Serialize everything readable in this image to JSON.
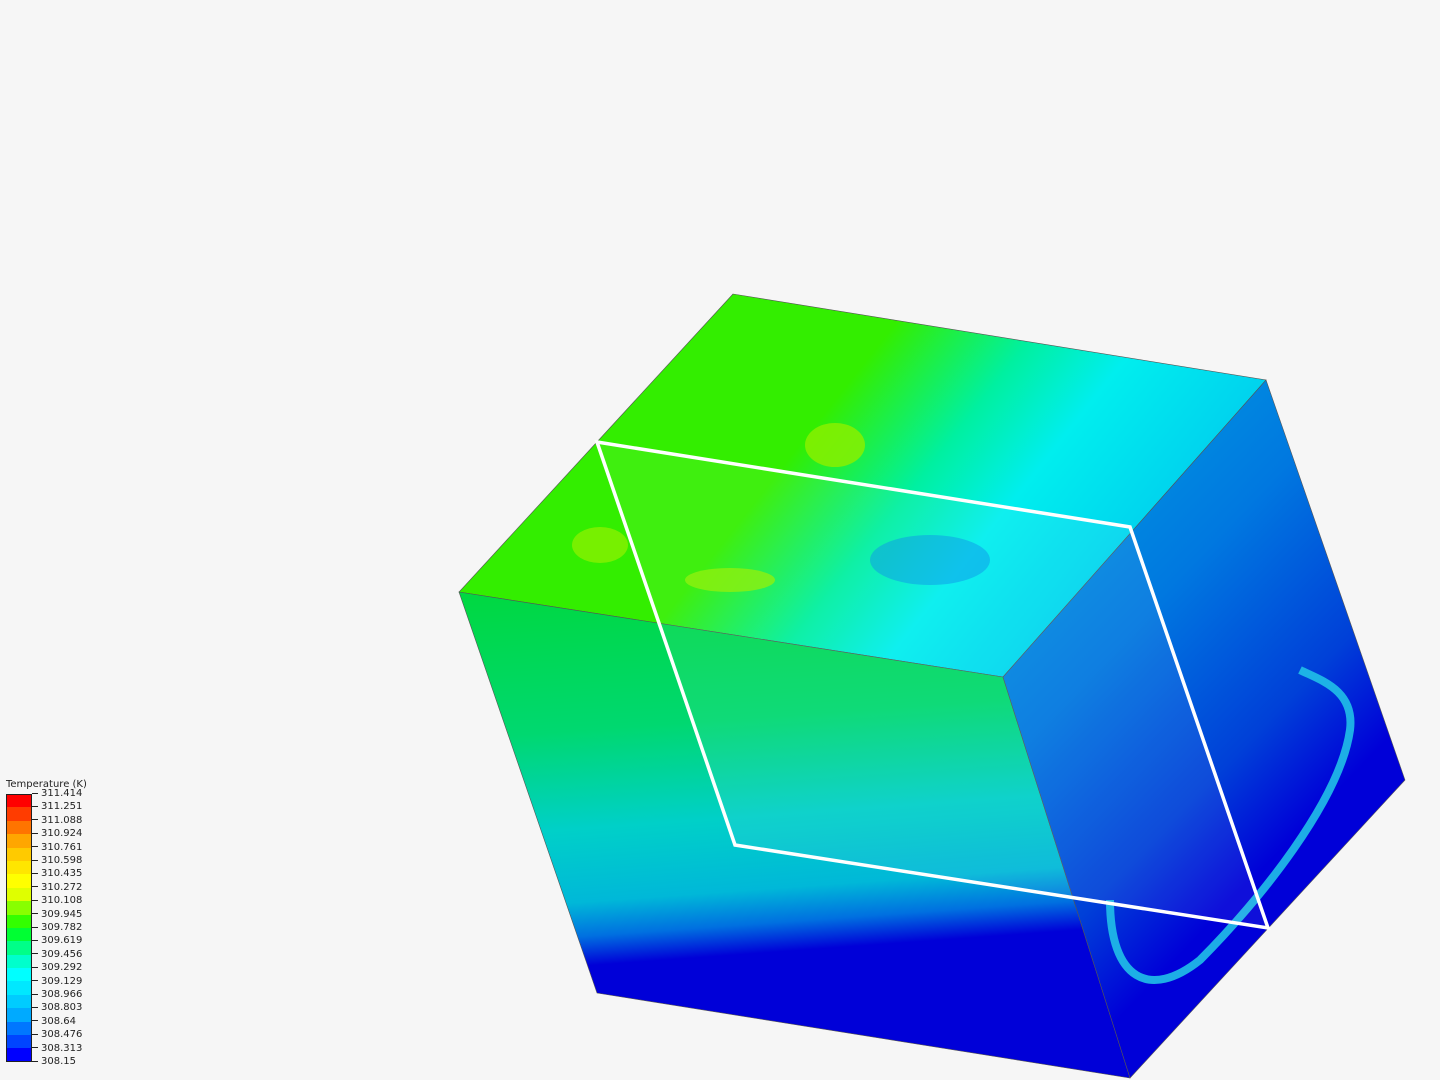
{
  "legend": {
    "title": "Temperature (K)",
    "labels": [
      "311.414",
      "311.251",
      "311.088",
      "310.924",
      "310.761",
      "310.598",
      "310.435",
      "310.272",
      "310.108",
      "309.945",
      "309.782",
      "309.619",
      "309.456",
      "309.292",
      "309.129",
      "308.966",
      "308.803",
      "308.64",
      "308.476",
      "308.313",
      "308.15"
    ],
    "colors": [
      "#ff0000",
      "#ff3c00",
      "#ff7400",
      "#ffa600",
      "#ffca00",
      "#ffe600",
      "#ffff00",
      "#dfff00",
      "#88ff00",
      "#33ff00",
      "#00ff33",
      "#00ff88",
      "#00ffcc",
      "#00ffff",
      "#00e8ff",
      "#00ccff",
      "#00aaff",
      "#0077ff",
      "#0044ff",
      "#0000ff"
    ]
  },
  "scene": {
    "object": "cube",
    "colored_by": "Temperature (K)",
    "cutting_plane": "white outline"
  }
}
